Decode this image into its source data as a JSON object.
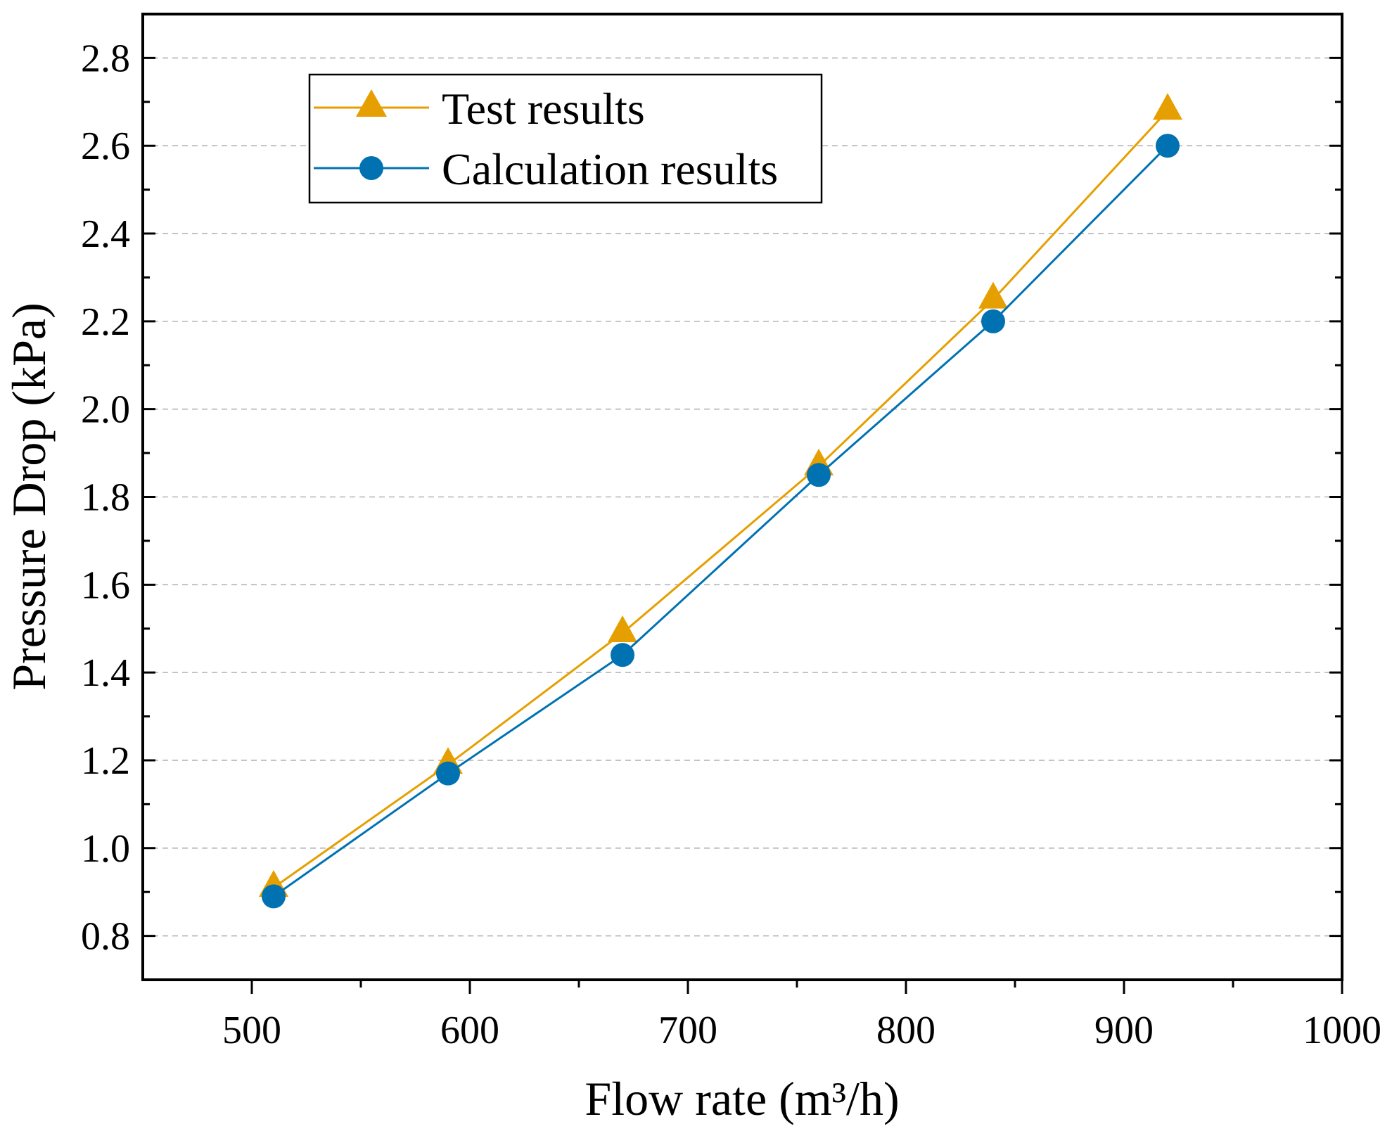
{
  "chart_data": {
    "type": "line",
    "title": "",
    "xlabel": "Flow rate (m³/h)",
    "ylabel": "Pressure Drop (kPa)",
    "xlim": [
      450,
      1000
    ],
    "ylim": [
      0.7,
      2.9
    ],
    "xticks": [
      500,
      600,
      700,
      800,
      900,
      1000
    ],
    "xtick_labels": [
      "500",
      "600",
      "700",
      "800",
      "900",
      "1000"
    ],
    "yticks": [
      0.8,
      1.0,
      1.2,
      1.4,
      1.6,
      1.8,
      2.0,
      2.2,
      2.4,
      2.6,
      2.8
    ],
    "ytick_labels": [
      "0.8",
      "1.0",
      "1.2",
      "1.4",
      "1.6",
      "1.8",
      "2.0",
      "2.2",
      "2.4",
      "2.6",
      "2.8"
    ],
    "grid": "horizontal-dashed",
    "legend_position": "top-left",
    "x": [
      510,
      590,
      670,
      760,
      840,
      920
    ],
    "series": [
      {
        "name": "Test results",
        "marker": "triangle",
        "color": "#E69F00",
        "values": [
          0.91,
          1.19,
          1.49,
          1.87,
          2.25,
          2.68
        ]
      },
      {
        "name": "Calculation results",
        "marker": "circle",
        "color": "#0072B2",
        "values": [
          0.89,
          1.17,
          1.44,
          1.85,
          2.2,
          2.6
        ]
      }
    ]
  }
}
